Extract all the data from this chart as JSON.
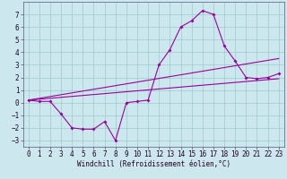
{
  "xlabel": "Windchill (Refroidissement éolien,°C)",
  "bg_color": "#cce8ee",
  "grid_color": "#99cccc",
  "line_color": "#990099",
  "xlim": [
    -0.5,
    23.5
  ],
  "ylim": [
    -3.5,
    8.0
  ],
  "xticks": [
    0,
    1,
    2,
    3,
    4,
    5,
    6,
    7,
    8,
    9,
    10,
    11,
    12,
    13,
    14,
    15,
    16,
    17,
    18,
    19,
    20,
    21,
    22,
    23
  ],
  "yticks": [
    -3,
    -2,
    -1,
    0,
    1,
    2,
    3,
    4,
    5,
    6,
    7
  ],
  "line1_x": [
    0,
    1,
    2,
    3,
    4,
    5,
    6,
    7,
    8,
    9,
    10,
    11,
    12,
    13,
    14,
    15,
    16,
    17,
    18,
    19,
    20,
    21,
    22,
    23
  ],
  "line1_y": [
    0.2,
    0.1,
    0.1,
    -0.9,
    -2.0,
    -2.1,
    -2.1,
    -1.5,
    -3.0,
    0.0,
    0.1,
    0.2,
    3.0,
    4.2,
    6.0,
    6.5,
    7.3,
    7.0,
    4.5,
    3.3,
    2.0,
    1.9,
    2.0,
    2.3
  ],
  "line2_x": [
    0,
    23
  ],
  "line2_y": [
    0.2,
    3.5
  ],
  "line3_x": [
    0,
    23
  ],
  "line3_y": [
    0.2,
    1.9
  ],
  "tick_fontsize": 5.5,
  "xlabel_fontsize": 5.5
}
